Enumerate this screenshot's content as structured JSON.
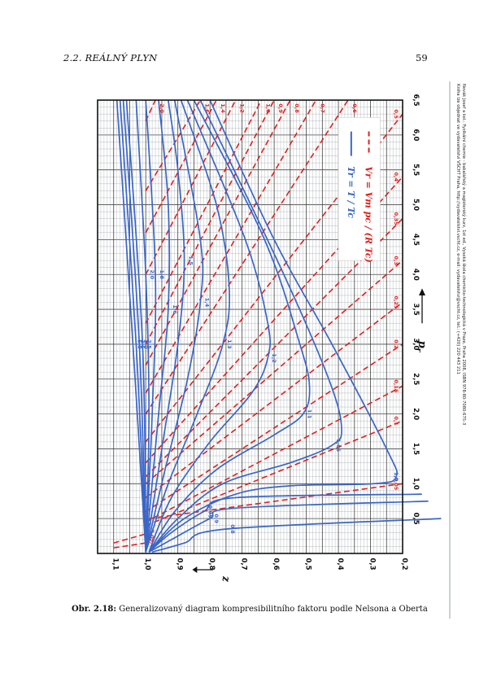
{
  "header": {
    "section": "2.2.  REÁLNÝ PLYN",
    "page_number": "59"
  },
  "side_note": {
    "line1": "Novák Josef a kol.: Fyzikální chemie - bakalářský a magisterský kurz, 1st ed., Vysoká škola chemicko-technologická v Praze, Praha 2008, ISBN 978-80-7080-675-3",
    "line2": "Kniha lze objednat ve vydavatelství VŠCHT Praha, http://vydavatelstvi.vscht.cz, e-mail: vydavatelstvi@vscht.cz, tel.: (+420) 220 443 211"
  },
  "caption": {
    "label": "Obr. 2.18:",
    "text": "Generalizovaný diagram kompresibilitního faktoru podle Nelsona a Oberta"
  },
  "chart_data": {
    "type": "line",
    "orientation": "rotated 90° clockwise (pr axis runs top-to-bottom)",
    "xlabel": "p",
    "xlabel_sub": "r",
    "ylabel": "z",
    "xlim": [
      0,
      6.5
    ],
    "ylim": [
      0.2,
      1.15
    ],
    "x_ticks": [
      "0,5",
      "1,0",
      "1,5",
      "2,0",
      "2,5",
      "3,0",
      "3,5",
      "4,0",
      "4,5",
      "5,0",
      "5,5",
      "6,0",
      "6,5"
    ],
    "y_ticks": [
      "1,1",
      "1,0",
      "0,9",
      "0,8",
      "0,7",
      "0,6",
      "0,5",
      "0,4",
      "0,3",
      "0,2"
    ],
    "grid": true,
    "legend_position": "bottom-right",
    "legend": [
      {
        "style": "solid",
        "color": "#3a66c8",
        "label": "Tr = T / Tc"
      },
      {
        "style": "dashed",
        "color": "#e0201c",
        "label": "Vr = Vm pc / (R Tc)"
      }
    ],
    "colors": {
      "isotherm": "#3a66c8",
      "isochore": "#e0201c"
    },
    "isotherms": [
      {
        "label": "0,8",
        "points": [
          [
            0.02,
            0.98
          ],
          [
            0.15,
            0.88
          ],
          [
            0.35,
            0.75
          ],
          [
            0.5,
            0.08
          ]
        ]
      },
      {
        "label": "0,9",
        "points": [
          [
            0.02,
            0.99
          ],
          [
            0.25,
            0.9
          ],
          [
            0.5,
            0.8
          ],
          [
            0.65,
            0.72
          ],
          [
            0.75,
            0.12
          ]
        ]
      },
      {
        "label": "0,95",
        "points": [
          [
            0.02,
            0.99
          ],
          [
            0.3,
            0.92
          ],
          [
            0.6,
            0.82
          ],
          [
            0.8,
            0.72
          ],
          [
            0.85,
            0.14
          ]
        ]
      },
      {
        "label": "1,0",
        "points": [
          [
            0.02,
            0.99
          ],
          [
            0.5,
            0.88
          ],
          [
            0.85,
            0.72
          ],
          [
            0.97,
            0.55
          ],
          [
            1.0,
            0.29
          ],
          [
            1.1,
            0.22
          ],
          [
            1.5,
            0.25
          ],
          [
            3.0,
            0.42
          ],
          [
            4.5,
            0.6
          ],
          [
            6.5,
            0.8
          ]
        ]
      },
      {
        "label": "1,05",
        "points": [
          [
            0.02,
            0.99
          ],
          [
            0.5,
            0.9
          ],
          [
            1.0,
            0.76
          ],
          [
            1.3,
            0.55
          ],
          [
            1.55,
            0.42
          ],
          [
            1.8,
            0.39
          ],
          [
            2.5,
            0.43
          ],
          [
            4.0,
            0.57
          ],
          [
            6.5,
            0.83
          ]
        ]
      },
      {
        "label": "1,1",
        "points": [
          [
            0.02,
            0.99
          ],
          [
            0.6,
            0.91
          ],
          [
            1.2,
            0.78
          ],
          [
            1.7,
            0.6
          ],
          [
            2.0,
            0.51
          ],
          [
            2.4,
            0.49
          ],
          [
            3.0,
            0.52
          ],
          [
            4.5,
            0.63
          ],
          [
            6.5,
            0.85
          ]
        ]
      },
      {
        "label": "1,2",
        "points": [
          [
            0.02,
            0.99
          ],
          [
            0.8,
            0.92
          ],
          [
            1.6,
            0.8
          ],
          [
            2.3,
            0.67
          ],
          [
            2.8,
            0.62
          ],
          [
            3.3,
            0.62
          ],
          [
            4.5,
            0.69
          ],
          [
            6.5,
            0.87
          ]
        ]
      },
      {
        "label": "1,3",
        "points": [
          [
            0.02,
            1.0
          ],
          [
            1.0,
            0.93
          ],
          [
            2.0,
            0.84
          ],
          [
            3.0,
            0.76
          ],
          [
            3.8,
            0.74
          ],
          [
            5.0,
            0.78
          ],
          [
            6.5,
            0.89
          ]
        ]
      },
      {
        "label": "1,4",
        "points": [
          [
            0.02,
            1.0
          ],
          [
            1.2,
            0.94
          ],
          [
            2.5,
            0.87
          ],
          [
            3.6,
            0.83
          ],
          [
            4.5,
            0.83
          ],
          [
            6.5,
            0.91
          ]
        ]
      },
      {
        "label": "1,5",
        "points": [
          [
            0.02,
            1.0
          ],
          [
            1.5,
            0.95
          ],
          [
            3.0,
            0.9
          ],
          [
            4.2,
            0.88
          ],
          [
            5.5,
            0.9
          ],
          [
            6.5,
            0.93
          ]
        ]
      },
      {
        "label": "1,6",
        "points": [
          [
            0.02,
            1.0
          ],
          [
            2.0,
            0.96
          ],
          [
            3.5,
            0.93
          ],
          [
            5.0,
            0.93
          ],
          [
            6.5,
            0.96
          ]
        ]
      },
      {
        "label": "1,8",
        "points": [
          [
            0.02,
            1.0
          ],
          [
            2.0,
            0.98
          ],
          [
            4.0,
            0.97
          ],
          [
            6.5,
            1.0
          ]
        ]
      },
      {
        "label": "2,0",
        "points": [
          [
            0.02,
            1.0
          ],
          [
            2.0,
            0.99
          ],
          [
            4.0,
            1.0
          ],
          [
            6.5,
            1.03
          ]
        ]
      },
      {
        "label": "2,5",
        "points": [
          [
            0.02,
            1.0
          ],
          [
            3.0,
            1.01
          ],
          [
            6.5,
            1.06
          ]
        ]
      },
      {
        "label": "3,0",
        "points": [
          [
            0.02,
            1.0
          ],
          [
            3.0,
            1.02
          ],
          [
            6.5,
            1.07
          ]
        ]
      },
      {
        "label": "3,5",
        "points": [
          [
            0.02,
            1.0
          ],
          [
            3.0,
            1.03
          ],
          [
            6.5,
            1.08
          ]
        ]
      },
      {
        "label": "5,0",
        "points": [
          [
            0.02,
            1.0
          ],
          [
            3.0,
            1.04
          ],
          [
            6.5,
            1.09
          ]
        ]
      }
    ],
    "isochores": [
      {
        "label": "0,05",
        "points": [
          [
            0.5,
            0.99
          ],
          [
            1.0,
            0.2
          ]
        ]
      },
      {
        "label": "0,1",
        "points": [
          [
            0.4,
            1.0
          ],
          [
            1.9,
            0.2
          ]
        ]
      },
      {
        "label": "0,15",
        "points": [
          [
            0.45,
            1.0
          ],
          [
            2.4,
            0.2
          ]
        ]
      },
      {
        "label": "0,2",
        "points": [
          [
            0.6,
            1.0
          ],
          [
            3.0,
            0.2
          ]
        ]
      },
      {
        "label": "0,25",
        "points": [
          [
            0.8,
            1.0
          ],
          [
            3.6,
            0.2
          ]
        ]
      },
      {
        "label": "0,3",
        "points": [
          [
            1.0,
            1.0
          ],
          [
            4.2,
            0.2
          ]
        ]
      },
      {
        "label": "0,35",
        "points": [
          [
            1.1,
            1.0
          ],
          [
            4.8,
            0.2
          ]
        ]
      },
      {
        "label": "0,4",
        "points": [
          [
            1.3,
            1.0
          ],
          [
            5.4,
            0.2
          ]
        ]
      },
      {
        "label": "0,5",
        "points": [
          [
            1.6,
            1.0
          ],
          [
            6.3,
            0.2
          ]
        ]
      },
      {
        "label": "0,6",
        "points": [
          [
            2.0,
            1.0
          ],
          [
            6.5,
            0.37
          ]
        ]
      },
      {
        "label": "0,7",
        "points": [
          [
            2.3,
            1.0
          ],
          [
            6.5,
            0.47
          ]
        ]
      },
      {
        "label": "0,8",
        "points": [
          [
            2.7,
            1.0
          ],
          [
            6.5,
            0.55
          ]
        ]
      },
      {
        "label": "0,9",
        "points": [
          [
            3.0,
            1.0
          ],
          [
            6.5,
            0.6
          ]
        ]
      },
      {
        "label": "1,0",
        "points": [
          [
            3.3,
            1.0
          ],
          [
            6.5,
            0.64
          ]
        ]
      },
      {
        "label": "1,2",
        "points": [
          [
            4.0,
            1.0
          ],
          [
            6.5,
            0.72
          ]
        ]
      },
      {
        "label": "1,4",
        "points": [
          [
            4.6,
            1.0
          ],
          [
            6.5,
            0.78
          ]
        ]
      },
      {
        "label": "1,6",
        "points": [
          [
            5.2,
            1.0
          ],
          [
            6.5,
            0.83
          ]
        ]
      },
      {
        "label": "2,0",
        "points": [
          [
            6.2,
            1.0
          ],
          [
            6.5,
            0.97
          ]
        ]
      },
      {
        "label": "3,0",
        "points": [
          [
            0.15,
            1.1
          ],
          [
            0.28,
            1.0
          ]
        ]
      },
      {
        "label": "5,0",
        "points": [
          [
            0.08,
            1.1
          ],
          [
            0.15,
            1.0
          ]
        ]
      }
    ]
  }
}
